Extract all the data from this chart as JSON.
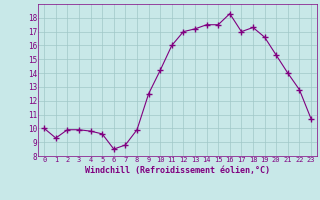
{
  "x": [
    0,
    1,
    2,
    3,
    4,
    5,
    6,
    7,
    8,
    9,
    10,
    11,
    12,
    13,
    14,
    15,
    16,
    17,
    18,
    19,
    20,
    21,
    22,
    23
  ],
  "y": [
    10.0,
    9.3,
    9.9,
    9.9,
    9.8,
    9.6,
    8.5,
    8.8,
    9.9,
    12.5,
    14.2,
    16.0,
    17.0,
    17.2,
    17.5,
    17.5,
    18.3,
    17.0,
    17.3,
    16.6,
    15.3,
    14.0,
    12.8,
    10.7
  ],
  "line_color": "#800080",
  "bg_color": "#c8e8e8",
  "grid_color": "#a0c8c8",
  "xlabel": "Windchill (Refroidissement éolien,°C)",
  "xlabel_color": "#800080",
  "tick_color": "#800080",
  "ylim": [
    8,
    19
  ],
  "xlim": [
    -0.5,
    23.5
  ],
  "yticks": [
    8,
    9,
    10,
    11,
    12,
    13,
    14,
    15,
    16,
    17,
    18
  ],
  "xticks": [
    0,
    1,
    2,
    3,
    4,
    5,
    6,
    7,
    8,
    9,
    10,
    11,
    12,
    13,
    14,
    15,
    16,
    17,
    18,
    19,
    20,
    21,
    22,
    23
  ]
}
